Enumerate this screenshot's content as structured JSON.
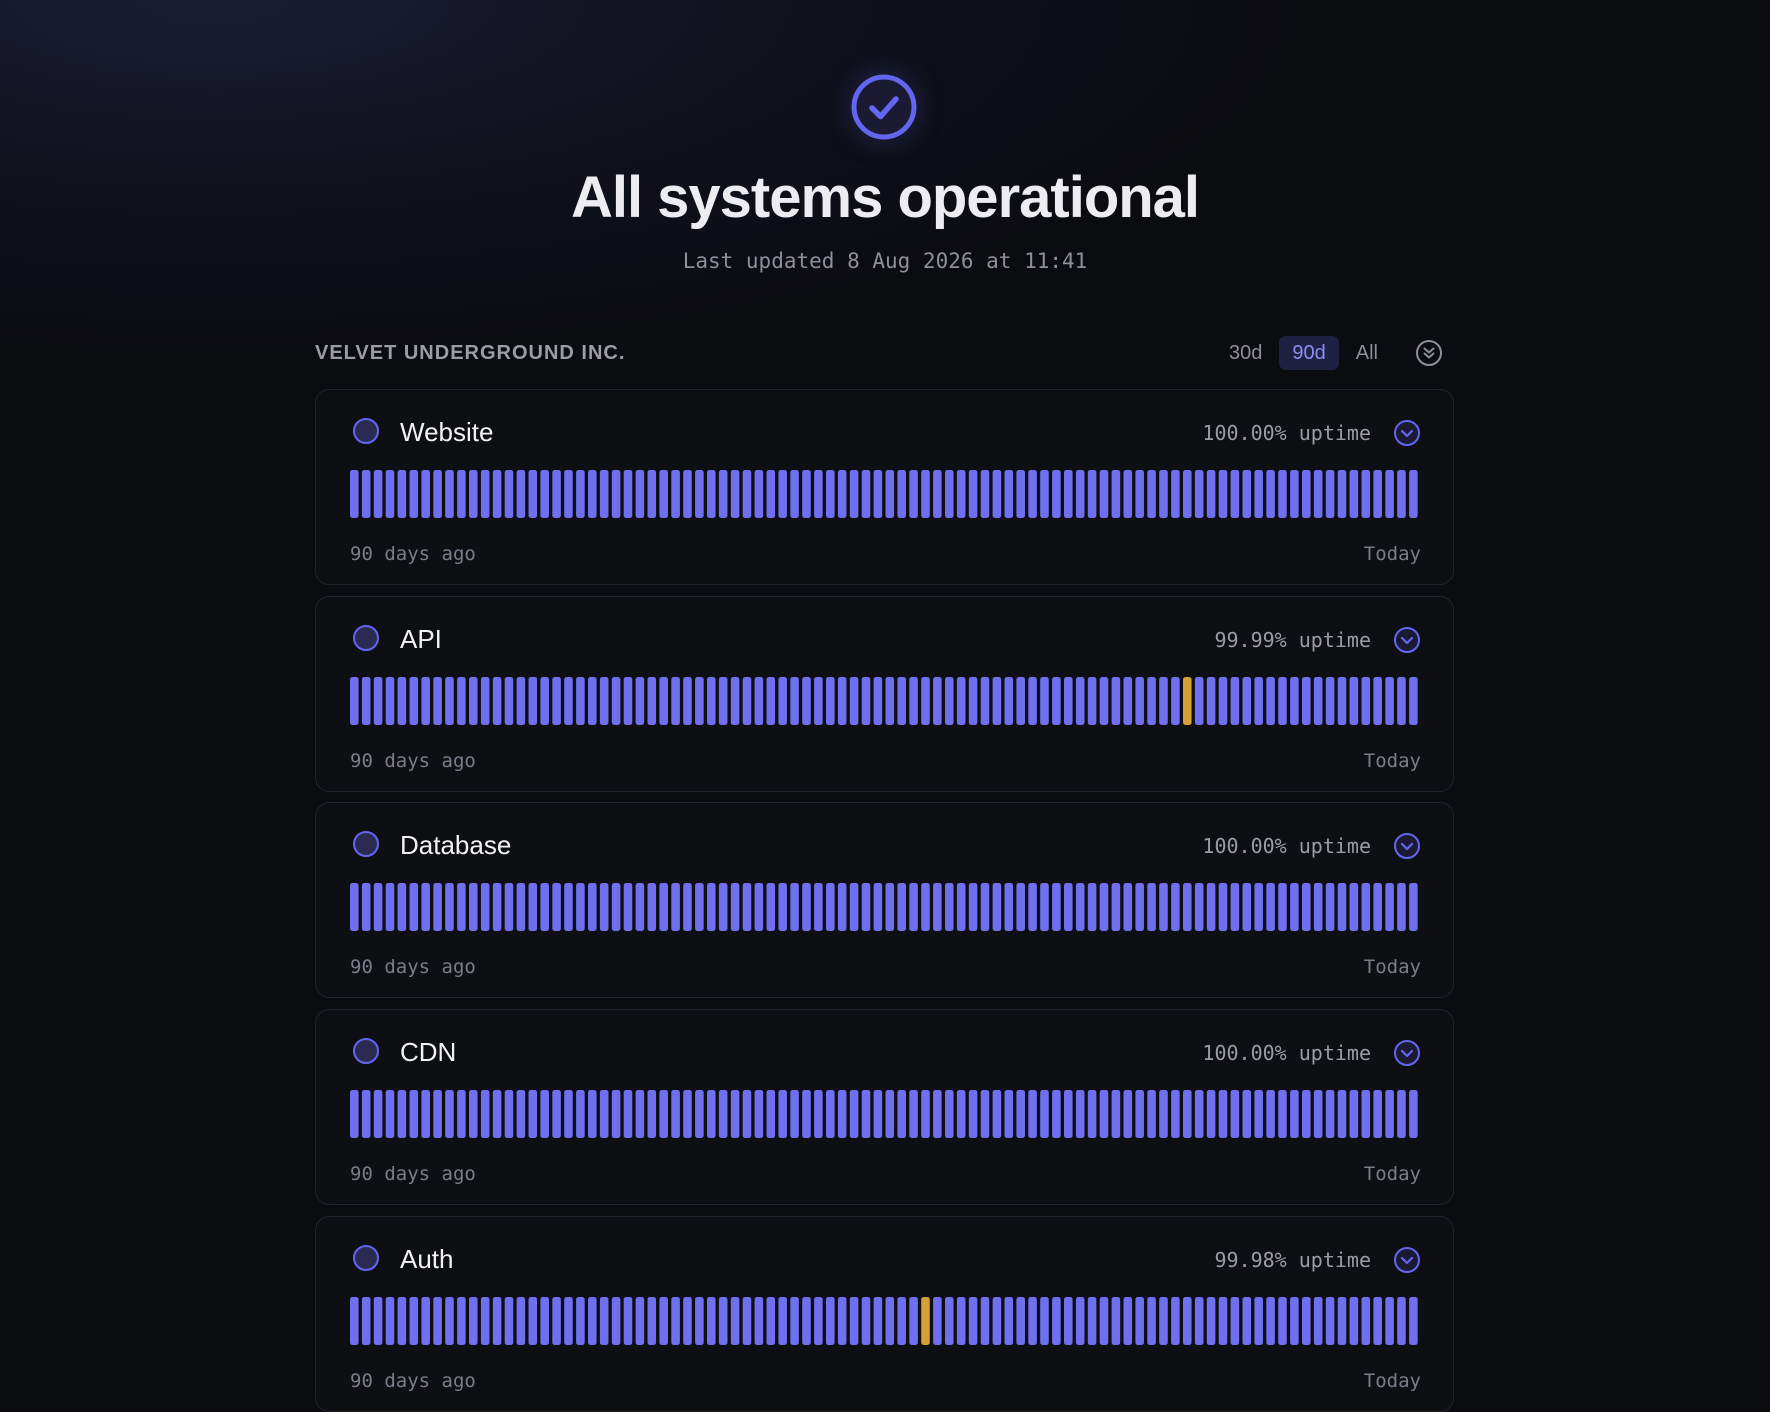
{
  "header": {
    "title": "All systems operational",
    "last_updated": "Last updated 8 Aug 2026 at 11:41"
  },
  "organization": "VELVET UNDERGROUND INC.",
  "range_tabs": [
    {
      "label": "30d",
      "active": false
    },
    {
      "label": "90d",
      "active": true
    },
    {
      "label": "All",
      "active": false
    }
  ],
  "colors": {
    "accent": "#6366f1",
    "bar_ok": "#6f6ff0",
    "bar_degraded": "#d4a037",
    "background": "#0b0c10"
  },
  "range_start_label": "90 days ago",
  "range_end_label": "Today",
  "services": [
    {
      "name": "Website",
      "uptime": "100.00% uptime",
      "days": 90,
      "degraded_days": []
    },
    {
      "name": "API",
      "uptime": "99.99% uptime",
      "days": 90,
      "degraded_days": [
        70
      ]
    },
    {
      "name": "Database",
      "uptime": "100.00% uptime",
      "days": 90,
      "degraded_days": []
    },
    {
      "name": "CDN",
      "uptime": "100.00% uptime",
      "days": 90,
      "degraded_days": []
    },
    {
      "name": "Auth",
      "uptime": "99.98% uptime",
      "days": 90,
      "degraded_days": [
        48
      ]
    }
  ]
}
